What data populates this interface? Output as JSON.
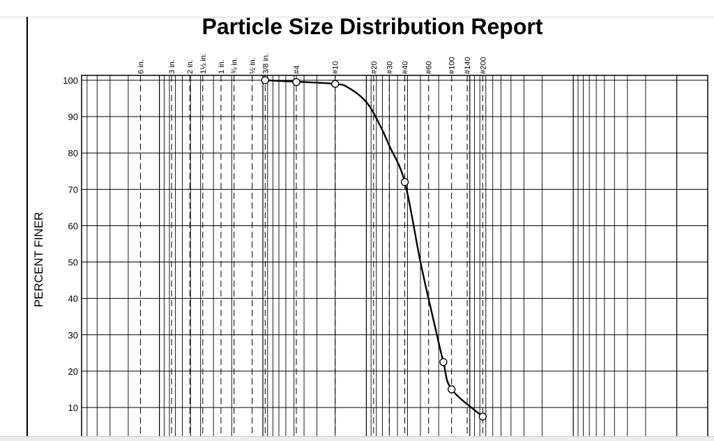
{
  "chart_data": {
    "type": "line",
    "title": "Particle Size Distribution Report",
    "ylabel": "PERCENT FINER",
    "xscale": "log",
    "x_direction": "decreasing",
    "xlim_mm": [
      1000,
      0.001
    ],
    "ylim": [
      0,
      100
    ],
    "yticks": [
      10,
      20,
      30,
      40,
      50,
      60,
      70,
      80,
      90,
      100
    ],
    "grid": true,
    "sieves": [
      {
        "label": "6 in.",
        "size_mm": 152.4
      },
      {
        "label": "3 in.",
        "size_mm": 76.2
      },
      {
        "label": "2 in.",
        "size_mm": 50.8
      },
      {
        "label": "1½ in.",
        "size_mm": 38.1
      },
      {
        "label": "1 in.",
        "size_mm": 25.4
      },
      {
        "label": "¾ in.",
        "size_mm": 19.0
      },
      {
        "label": "½ in.",
        "size_mm": 12.7
      },
      {
        "label": "3/8 in.",
        "size_mm": 9.5
      },
      {
        "label": "#4",
        "size_mm": 4.75
      },
      {
        "label": "#10",
        "size_mm": 2.0
      },
      {
        "label": "#20",
        "size_mm": 0.85
      },
      {
        "label": "#30",
        "size_mm": 0.6
      },
      {
        "label": "#40",
        "size_mm": 0.425
      },
      {
        "label": "#60",
        "size_mm": 0.25
      },
      {
        "label": "#100",
        "size_mm": 0.15
      },
      {
        "label": "#140",
        "size_mm": 0.106
      },
      {
        "label": "#200",
        "size_mm": 0.075
      }
    ],
    "series": [
      {
        "points": [
          {
            "x": 9.5,
            "y": 100
          },
          {
            "x": 4.75,
            "y": 99.5
          },
          {
            "x": 2.0,
            "y": 99
          },
          {
            "x": 0.425,
            "y": 72
          },
          {
            "x": 0.18,
            "y": 22.5
          },
          {
            "x": 0.15,
            "y": 15
          },
          {
            "x": 0.075,
            "y": 7.5
          }
        ]
      }
    ],
    "curve_path": [
      {
        "x": 9.5,
        "y": 100
      },
      {
        "x": 4.75,
        "y": 99.6
      },
      {
        "x": 2.0,
        "y": 99
      },
      {
        "x": 1.5,
        "y": 98
      },
      {
        "x": 1.0,
        "y": 94
      },
      {
        "x": 0.75,
        "y": 88
      },
      {
        "x": 0.6,
        "y": 82
      },
      {
        "x": 0.425,
        "y": 72
      },
      {
        "x": 0.3,
        "y": 50
      },
      {
        "x": 0.22,
        "y": 33
      },
      {
        "x": 0.18,
        "y": 22.5
      },
      {
        "x": 0.15,
        "y": 15
      },
      {
        "x": 0.075,
        "y": 7.5
      }
    ]
  }
}
